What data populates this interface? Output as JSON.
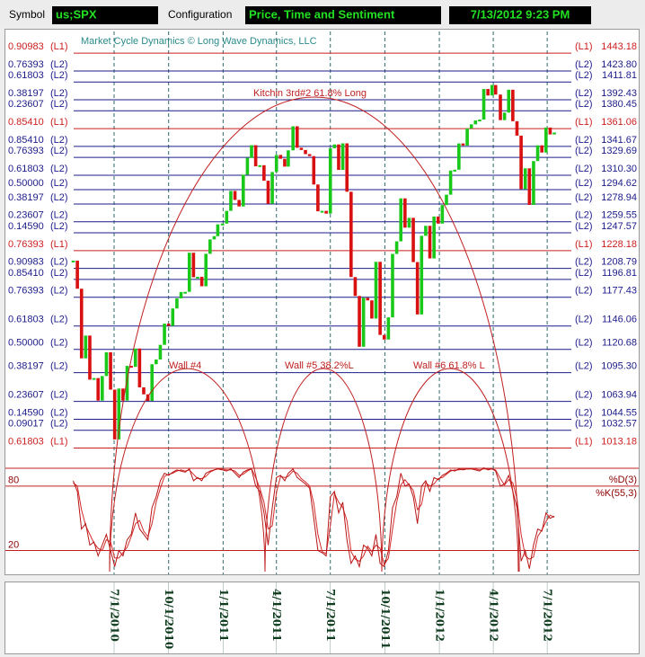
{
  "toolbar": {
    "symbol_label": "Symbol",
    "symbol": "us;SPX",
    "config_label": "Configuration",
    "config": "Price, Time and Sentiment",
    "timestamp": "7/13/2012 9:23 PM"
  },
  "chart_data": {
    "type": "price",
    "watermark": "Market Cycle Dynamics © Long Wave Dynamics, LLC",
    "annotations": [
      "Kitchin 3rd#2 61.8% Long",
      "Wall #4",
      "Wall #5 38.2%L",
      "Wall #6 61.8% L"
    ],
    "xlim": [
      "12/28/2009",
      "12/4/2012"
    ],
    "xticks": [
      "7/1/2010",
      "10/1/2010",
      "1/1/2011",
      "4/1/2011",
      "7/1/2011",
      "10/1/2011",
      "1/1/2012",
      "4/1/2012",
      "7/1/2012"
    ],
    "ylim": [
      1000,
      1460
    ],
    "up_color": "#19c819",
    "down_color": "#d81010",
    "x": [
      "4/23/2010",
      "4/30/2010",
      "5/7/2010",
      "5/14/2010",
      "5/21/2010",
      "5/28/2010",
      "6/4/2010",
      "6/11/2010",
      "6/18/2010",
      "6/25/2010",
      "7/2/2010",
      "7/9/2010",
      "7/16/2010",
      "7/23/2010",
      "7/30/2010",
      "8/6/2010",
      "8/13/2010",
      "8/20/2010",
      "8/27/2010",
      "9/3/2010",
      "9/10/2010",
      "9/17/2010",
      "9/24/2010",
      "10/1/2010",
      "10/8/2010",
      "10/15/2010",
      "10/22/2010",
      "10/29/2010",
      "11/5/2010",
      "11/12/2010",
      "11/19/2010",
      "11/26/2010",
      "12/3/2010",
      "12/10/2010",
      "12/17/2010",
      "12/23/2010",
      "12/31/2010",
      "1/7/2011",
      "1/14/2011",
      "1/21/2011",
      "1/28/2011",
      "2/4/2011",
      "2/11/2011",
      "2/18/2011",
      "2/25/2011",
      "3/4/2011",
      "3/11/2011",
      "3/18/2011",
      "3/25/2011",
      "4/1/2011",
      "4/8/2011",
      "4/15/2011",
      "4/21/2011",
      "4/29/2011",
      "5/6/2011",
      "5/13/2011",
      "5/20/2011",
      "5/27/2011",
      "6/3/2011",
      "6/10/2011",
      "6/17/2011",
      "6/24/2011",
      "7/1/2011",
      "7/8/2011",
      "7/15/2011",
      "7/22/2011",
      "7/29/2011",
      "8/5/2011",
      "8/12/2011",
      "8/19/2011",
      "8/26/2011",
      "9/2/2011",
      "9/9/2011",
      "9/16/2011",
      "9/23/2011",
      "9/30/2011",
      "10/7/2011",
      "10/14/2011",
      "10/21/2011",
      "10/28/2011",
      "11/4/2011",
      "11/11/2011",
      "11/18/2011",
      "11/25/2011",
      "12/2/2011",
      "12/9/2011",
      "12/16/2011",
      "12/23/2011",
      "12/30/2011",
      "1/6/2012",
      "1/13/2012",
      "1/20/2012",
      "1/27/2012",
      "2/3/2012",
      "2/10/2012",
      "2/17/2012",
      "2/24/2012",
      "3/2/2012",
      "3/9/2012",
      "3/16/2012",
      "3/23/2012",
      "3/30/2012",
      "4/5/2012",
      "4/13/2012",
      "4/20/2012",
      "4/27/2012",
      "5/4/2012",
      "5/11/2012",
      "5/18/2012",
      "5/25/2012",
      "6/1/2012",
      "6/8/2012",
      "6/15/2012",
      "6/22/2012",
      "6/29/2012",
      "7/6/2012",
      "7/13/2012"
    ],
    "values": [
      1217.3,
      1186.7,
      1110.9,
      1135.7,
      1087.7,
      1089.4,
      1064.9,
      1091.6,
      1117.5,
      1076.8,
      1022.6,
      1078.0,
      1064.9,
      1102.7,
      1101.6,
      1121.6,
      1079.3,
      1071.7,
      1064.6,
      1104.5,
      1109.6,
      1125.6,
      1148.7,
      1146.2,
      1165.2,
      1176.2,
      1183.1,
      1183.3,
      1225.9,
      1199.2,
      1199.7,
      1189.4,
      1224.7,
      1240.4,
      1243.9,
      1256.8,
      1257.6,
      1271.5,
      1293.2,
      1283.4,
      1276.3,
      1310.9,
      1329.2,
      1343.0,
      1320.0,
      1321.2,
      1304.3,
      1279.2,
      1313.8,
      1332.4,
      1328.2,
      1319.7,
      1337.4,
      1363.6,
      1340.2,
      1337.8,
      1333.3,
      1331.1,
      1300.2,
      1271.0,
      1271.5,
      1268.5,
      1339.7,
      1343.8,
      1316.1,
      1345.0,
      1292.3,
      1199.4,
      1178.8,
      1123.5,
      1176.8,
      1174.0,
      1154.2,
      1216.0,
      1136.4,
      1131.4,
      1155.5,
      1224.6,
      1238.3,
      1285.1,
      1253.2,
      1263.9,
      1215.7,
      1158.7,
      1244.3,
      1255.2,
      1219.7,
      1265.3,
      1257.6,
      1277.8,
      1289.1,
      1315.4,
      1316.3,
      1344.9,
      1342.6,
      1361.2,
      1365.7,
      1370.0,
      1370.9,
      1404.2,
      1397.1,
      1408.5,
      1398.1,
      1370.3,
      1378.5,
      1403.4,
      1369.1,
      1353.4,
      1295.2,
      1317.8,
      1278.0,
      1325.7,
      1342.8,
      1335.0,
      1362.2,
      1354.7,
      1356.8
    ],
    "levels": [
      {
        "ratio": "0.90983",
        "tier": "(L1)",
        "price": {
          "value": 1443.18,
          "label": "1443.18"
        },
        "color": "#cc1f1f"
      },
      {
        "ratio": "0.76393",
        "tier": "(L2)",
        "price": {
          "value": 1423.8,
          "label": "1423.80"
        },
        "color": "#1c1c8a"
      },
      {
        "ratio": "0.61803",
        "tier": "(L2)",
        "price": {
          "value": 1411.81,
          "label": "1411.81"
        },
        "color": "#1c1c8a"
      },
      {
        "ratio": "0.38197",
        "tier": "(L2)",
        "price": {
          "value": 1392.43,
          "label": "1392.43"
        },
        "color": "#1c1c8a"
      },
      {
        "ratio": "0.23607",
        "tier": "(L2)",
        "price": {
          "value": 1380.45,
          "label": "1380.45"
        },
        "color": "#1c1c8a"
      },
      {
        "ratio": "0.85410",
        "tier": "(L1)",
        "price": {
          "value": 1361.06,
          "label": "1361.06"
        },
        "color": "#cc1f1f"
      },
      {
        "ratio": "0.85410",
        "tier": "(L2)",
        "price": {
          "value": 1341.67,
          "label": "1341.67"
        },
        "color": "#1c1c8a"
      },
      {
        "ratio": "0.76393",
        "tier": "(L2)",
        "price": {
          "value": 1329.69,
          "label": "1329.69"
        },
        "color": "#1c1c8a"
      },
      {
        "ratio": "0.61803",
        "tier": "(L2)",
        "price": {
          "value": 1310.3,
          "label": "1310.30"
        },
        "color": "#1c1c8a"
      },
      {
        "ratio": "0.50000",
        "tier": "(L2)",
        "price": {
          "value": 1294.62,
          "label": "1294.62"
        },
        "color": "#1c1c8a"
      },
      {
        "ratio": "0.38197",
        "tier": "(L2)",
        "price": {
          "value": 1278.94,
          "label": "1278.94"
        },
        "color": "#1c1c8a"
      },
      {
        "ratio": "0.23607",
        "tier": "(L2)",
        "price": {
          "value": 1259.55,
          "label": "1259.55"
        },
        "color": "#1c1c8a"
      },
      {
        "ratio": "0.14590",
        "tier": "(L2)",
        "price": {
          "value": 1247.57,
          "label": "1247.57"
        },
        "color": "#1c1c8a"
      },
      {
        "ratio": "0.76393",
        "tier": "(L1)",
        "price": {
          "value": 1228.18,
          "label": "1228.18"
        },
        "color": "#cc1f1f"
      },
      {
        "ratio": "0.90983",
        "tier": "(L2)",
        "price": {
          "value": 1208.79,
          "label": "1208.79"
        },
        "color": "#1c1c8a"
      },
      {
        "ratio": "0.85410",
        "tier": "(L2)",
        "price": {
          "value": 1196.81,
          "label": "1196.81"
        },
        "color": "#1c1c8a"
      },
      {
        "ratio": "0.76393",
        "tier": "(L2)",
        "price": {
          "value": 1177.43,
          "label": "1177.43"
        },
        "color": "#1c1c8a"
      },
      {
        "ratio": "0.61803",
        "tier": "(L2)",
        "price": {
          "value": 1146.06,
          "label": "1146.06"
        },
        "color": "#1c1c8a"
      },
      {
        "ratio": "0.50000",
        "tier": "(L2)",
        "price": {
          "value": 1120.68,
          "label": "1120.68"
        },
        "color": "#1c1c8a"
      },
      {
        "ratio": "0.38197",
        "tier": "(L2)",
        "price": {
          "value": 1095.3,
          "label": "1095.30"
        },
        "color": "#1c1c8a"
      },
      {
        "ratio": "0.23607",
        "tier": "(L2)",
        "price": {
          "value": 1063.94,
          "label": "1063.94"
        },
        "color": "#1c1c8a"
      },
      {
        "ratio": "0.14590",
        "tier": "(L2)",
        "price": {
          "value": 1044.55,
          "label": "1044.55"
        },
        "color": "#1c1c8a"
      },
      {
        "ratio": "0.09017",
        "tier": "(L2)",
        "price": {
          "value": 1032.57,
          "label": "1032.57"
        },
        "color": "#1c1c8a"
      },
      {
        "ratio": "0.61803",
        "tier": "(L1)",
        "price": {
          "value": 1013.18,
          "label": "1013.18"
        },
        "color": "#cc1f1f"
      }
    ],
    "oscillator": {
      "ylim": [
        -3,
        110
      ],
      "yticks": [
        80,
        20
      ],
      "grid_color": "#c02020",
      "series": [
        {
          "name": "%D(3)",
          "color": "#d42a2a",
          "values": [
            83,
            80,
            58,
            43,
            35,
            27,
            22,
            20,
            30,
            28,
            13,
            13,
            18,
            23,
            33,
            45,
            48,
            38,
            33,
            45,
            65,
            78,
            89,
            91,
            92,
            94,
            95,
            94,
            95,
            91,
            87,
            87,
            89,
            93,
            95,
            96,
            96,
            95,
            95,
            94,
            90,
            91,
            94,
            96,
            88,
            78,
            65,
            40,
            43,
            74,
            89,
            88,
            89,
            94,
            92,
            87,
            84,
            80,
            64,
            35,
            19,
            17,
            43,
            73,
            65,
            60,
            48,
            19,
            12,
            10,
            15,
            24,
            19,
            25,
            22,
            7,
            13,
            40,
            65,
            81,
            86,
            81,
            76,
            58,
            63,
            83,
            80,
            82,
            87,
            88,
            91,
            94,
            95,
            95,
            96,
            96,
            96,
            96,
            95,
            96,
            96,
            96,
            95,
            87,
            81,
            86,
            83,
            68,
            35,
            15,
            12,
            14,
            33,
            39,
            47,
            53,
            51
          ]
        },
        {
          "name": "%K(55,3)",
          "color": "#b81414",
          "values": [
            85,
            75,
            40,
            45,
            25,
            28,
            15,
            25,
            35,
            20,
            5,
            20,
            15,
            30,
            35,
            55,
            40,
            35,
            30,
            60,
            70,
            85,
            92,
            90,
            93,
            95,
            94,
            93,
            96,
            85,
            88,
            85,
            92,
            94,
            95,
            96,
            95,
            94,
            96,
            92,
            88,
            93,
            95,
            96,
            80,
            75,
            55,
            25,
            60,
            88,
            90,
            85,
            92,
            96,
            88,
            85,
            82,
            78,
            50,
            20,
            18,
            15,
            70,
            75,
            55,
            65,
            30,
            8,
            15,
            5,
            25,
            22,
            15,
            35,
            8,
            5,
            20,
            60,
            70,
            92,
            80,
            82,
            70,
            45,
            80,
            85,
            75,
            88,
            86,
            90,
            92,
            95,
            94,
            96,
            95,
            96,
            96,
            95,
            94,
            97,
            95,
            96,
            94,
            80,
            82,
            90,
            75,
            60,
            10,
            20,
            3,
            25,
            40,
            38,
            55,
            50,
            52
          ]
        }
      ]
    }
  }
}
